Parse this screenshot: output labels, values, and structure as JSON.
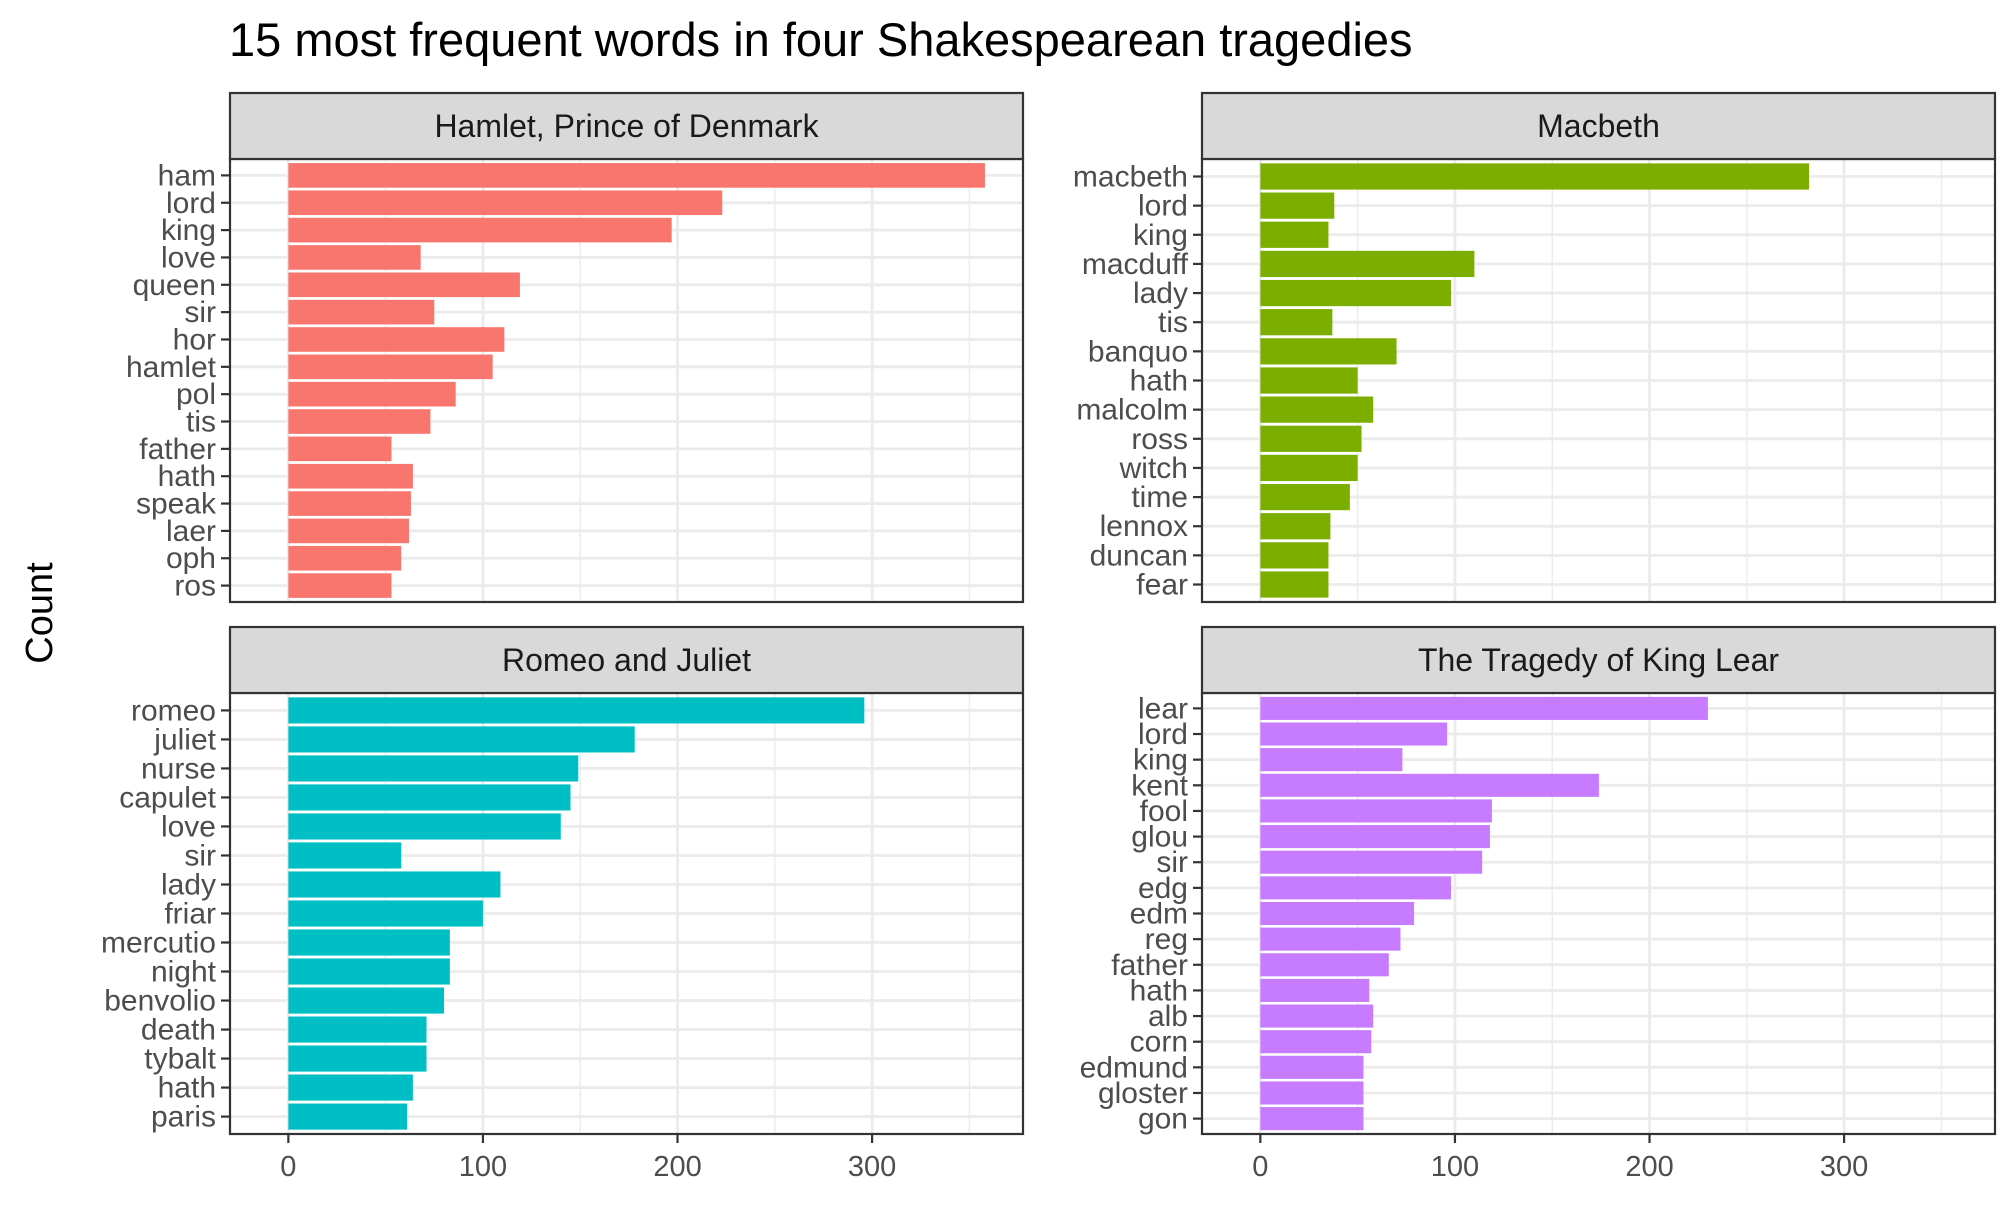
{
  "chart_data": {
    "type": "bar",
    "orientation": "horizontal",
    "title": "15 most frequent words in four Shakespearean tragedies",
    "ylabel": "Count",
    "xlim": [
      0,
      360
    ],
    "x_ticks": [
      0,
      100,
      200,
      300
    ],
    "grid": true,
    "legend": "none",
    "facets": [
      {
        "name": "Hamlet, Prince of Denmark",
        "color": "#F8766D",
        "categories": [
          "ham",
          "lord",
          "king",
          "love",
          "queen",
          "sir",
          "hor",
          "hamlet",
          "pol",
          "tis",
          "father",
          "hath",
          "speak",
          "laer",
          "oph",
          "ros"
        ],
        "values": [
          358,
          223,
          197,
          68,
          119,
          75,
          111,
          105,
          86,
          73,
          53,
          64,
          63,
          62,
          58,
          53
        ]
      },
      {
        "name": "Macbeth",
        "color": "#7CAE00",
        "categories": [
          "macbeth",
          "lord",
          "king",
          "macduff",
          "lady",
          "tis",
          "banquo",
          "hath",
          "malcolm",
          "ross",
          "witch",
          "time",
          "lennox",
          "duncan",
          "fear"
        ],
        "values": [
          282,
          38,
          35,
          110,
          98,
          37,
          70,
          50,
          58,
          52,
          50,
          46,
          36,
          35,
          35
        ]
      },
      {
        "name": "Romeo and Juliet",
        "color": "#00BFC4",
        "categories": [
          "romeo",
          "juliet",
          "nurse",
          "capulet",
          "love",
          "sir",
          "lady",
          "friar",
          "mercutio",
          "night",
          "benvolio",
          "death",
          "tybalt",
          "hath",
          "paris"
        ],
        "values": [
          296,
          178,
          149,
          145,
          140,
          58,
          109,
          100,
          83,
          83,
          80,
          71,
          71,
          64,
          61
        ]
      },
      {
        "name": "The Tragedy of King Lear",
        "color": "#C77CFF",
        "categories": [
          "lear",
          "lord",
          "king",
          "kent",
          "fool",
          "glou",
          "sir",
          "edg",
          "edm",
          "reg",
          "father",
          "hath",
          "alb",
          "corn",
          "edmund",
          "gloster",
          "gon"
        ],
        "values": [
          230,
          96,
          73,
          174,
          119,
          118,
          114,
          98,
          79,
          72,
          66,
          56,
          58,
          57,
          53,
          53,
          53
        ]
      }
    ]
  }
}
